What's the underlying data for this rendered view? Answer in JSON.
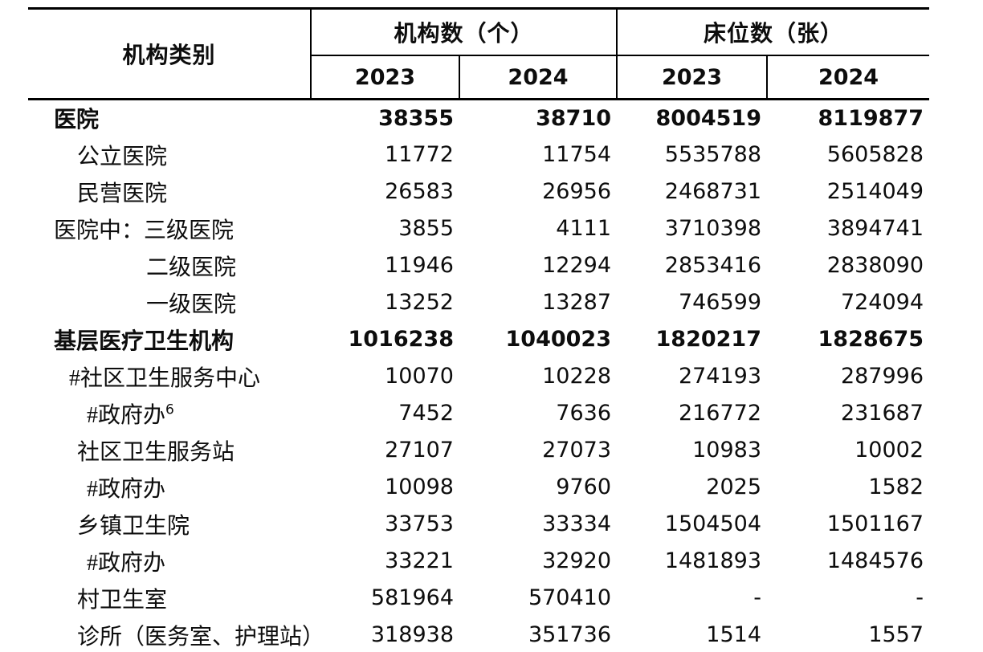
{
  "page": {
    "background_color": "#ffffff",
    "text_color": "#0d0d0d",
    "border_color": "#000000"
  },
  "table": {
    "header": {
      "col_category": "机构类别",
      "group_institutions": "机构数（个）",
      "group_beds": "床位数（张）",
      "years": [
        "2023",
        "2024",
        "2023",
        "2024"
      ]
    },
    "rows": [
      {
        "label": "医院",
        "bold": true,
        "indent": 0,
        "values": [
          "38355",
          "38710",
          "8004519",
          "8119877"
        ]
      },
      {
        "label": "公立医院",
        "bold": false,
        "indent": 1,
        "values": [
          "11772",
          "11754",
          "5535788",
          "5605828"
        ]
      },
      {
        "label": "民营医院",
        "bold": false,
        "indent": 1,
        "values": [
          "26583",
          "26956",
          "2468731",
          "2514049"
        ]
      },
      {
        "label": "医院中：三级医院",
        "bold": false,
        "indent": 0,
        "values": [
          "3855",
          "4111",
          "3710398",
          "3894741"
        ]
      },
      {
        "label": "二级医院",
        "bold": false,
        "indent": 4,
        "values": [
          "11946",
          "12294",
          "2853416",
          "2838090"
        ]
      },
      {
        "label": "一级医院",
        "bold": false,
        "indent": 4,
        "values": [
          "13252",
          "13287",
          "746599",
          "724094"
        ]
      },
      {
        "label": "基层医疗卫生机构",
        "bold": true,
        "indent": 0,
        "values": [
          "1016238",
          "1040023",
          "1820217",
          "1828675"
        ]
      },
      {
        "label": "#社区卫生服务中心",
        "bold": false,
        "indent": 2,
        "values": [
          "10070",
          "10228",
          "274193",
          "287996"
        ]
      },
      {
        "label": "#政府办",
        "sup": "6",
        "bold": false,
        "indent": 3,
        "values": [
          "7452",
          "7636",
          "216772",
          "231687"
        ]
      },
      {
        "label": "社区卫生服务站",
        "bold": false,
        "indent": 1,
        "values": [
          "27107",
          "27073",
          "10983",
          "10002"
        ]
      },
      {
        "label": "#政府办",
        "bold": false,
        "indent": 3,
        "values": [
          "10098",
          "9760",
          "2025",
          "1582"
        ]
      },
      {
        "label": "乡镇卫生院",
        "bold": false,
        "indent": 1,
        "values": [
          "33753",
          "33334",
          "1504504",
          "1501167"
        ]
      },
      {
        "label": "#政府办",
        "bold": false,
        "indent": 3,
        "values": [
          "33221",
          "32920",
          "1481893",
          "1484576"
        ]
      },
      {
        "label": "村卫生室",
        "bold": false,
        "indent": 1,
        "values": [
          "581964",
          "570410",
          "-",
          "-"
        ]
      },
      {
        "label": "诊所（医务室、护理站）",
        "bold": false,
        "indent": 1,
        "values": [
          "318938",
          "351736",
          "1514",
          "1557"
        ]
      }
    ]
  }
}
